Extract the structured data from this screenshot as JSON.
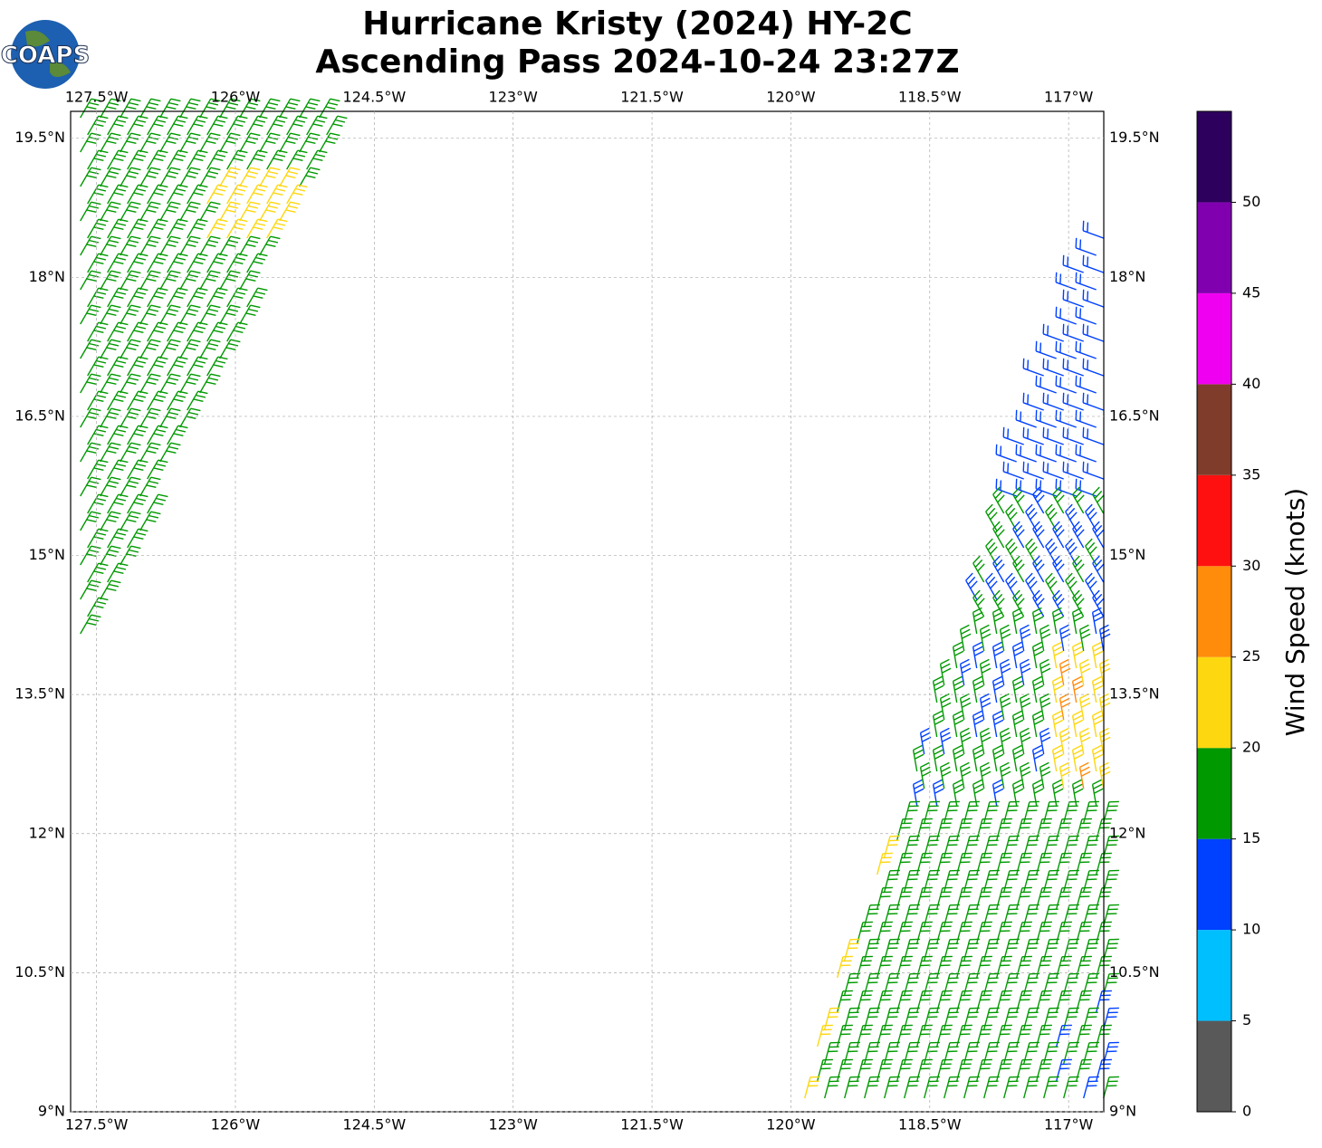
{
  "header": {
    "title_line1": "Hurricane Kristy (2024) HY-2C",
    "title_line2": "Ascending Pass 2024-10-24 23:27Z",
    "logo_text": "COAPS"
  },
  "map": {
    "xlim": [
      -127.78,
      -116.62
    ],
    "ylim": [
      9,
      19.79
    ],
    "xticks": [
      {
        "value": -127.5,
        "label": "127.5°W"
      },
      {
        "value": -126,
        "label": "126°W"
      },
      {
        "value": -124.5,
        "label": "124.5°W"
      },
      {
        "value": -123,
        "label": "123°W"
      },
      {
        "value": -121.5,
        "label": "121.5°W"
      },
      {
        "value": -120,
        "label": "120°W"
      },
      {
        "value": -118.5,
        "label": "118.5°W"
      },
      {
        "value": -117,
        "label": "117°W"
      }
    ],
    "yticks": [
      {
        "value": 9,
        "label": "9°N"
      },
      {
        "value": 10.5,
        "label": "10.5°N"
      },
      {
        "value": 12,
        "label": "12°N"
      },
      {
        "value": 13.5,
        "label": "13.5°N"
      },
      {
        "value": 15,
        "label": "15°N"
      },
      {
        "value": 16.5,
        "label": "16.5°N"
      },
      {
        "value": 18,
        "label": "18°N"
      },
      {
        "value": 19.5,
        "label": "19.5°N"
      }
    ],
    "grid": true
  },
  "colorbar": {
    "label": "Wind Speed (knots)",
    "lim": [
      0,
      55
    ],
    "bounds": [
      0,
      5,
      10,
      15,
      20,
      25,
      30,
      35,
      40,
      45,
      50,
      55
    ],
    "colors": [
      "#595959",
      "#00bfff",
      "#0040ff",
      "#009900",
      "#fdd70f",
      "#ff8c0a",
      "#ff1010",
      "#803c2a",
      "#f000f0",
      "#8000b0",
      "#2e005e"
    ],
    "ticks": [
      0,
      5,
      10,
      15,
      20,
      25,
      30,
      35,
      40,
      45,
      50
    ]
  }
}
